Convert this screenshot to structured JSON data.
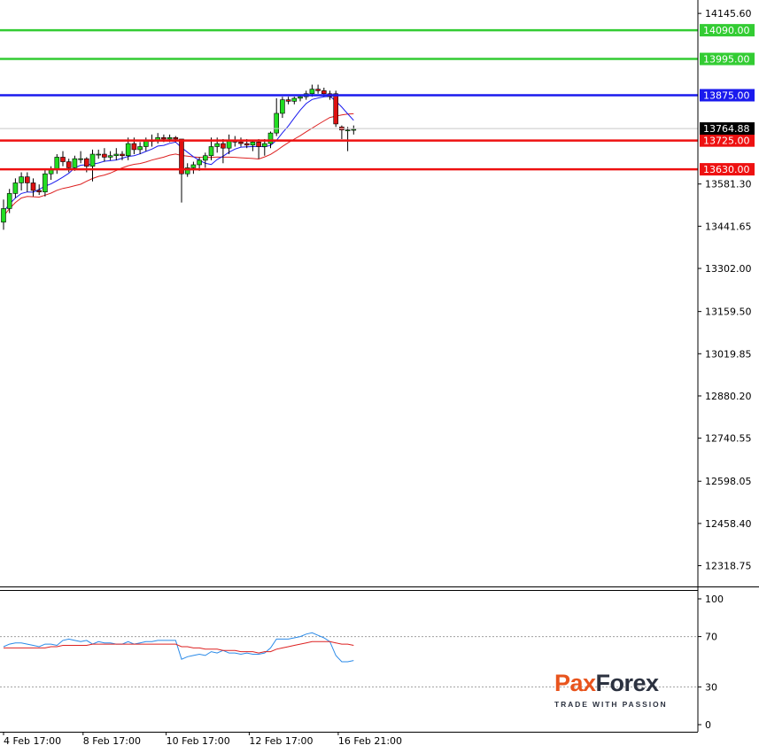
{
  "chart_data": [
    {
      "type": "candlestick",
      "ylim": [
        12250,
        14190
      ],
      "y_ticks": [
        "14145.60",
        "13581.30",
        "13441.65",
        "13302.00",
        "13159.50",
        "13019.85",
        "12880.20",
        "12740.55",
        "12598.05",
        "12458.40",
        "12318.75"
      ],
      "x_ticks": [
        "4 Feb 17:00",
        "8 Feb 17:00",
        "10 Feb 17:00",
        "12 Feb 17:00",
        "16 Feb 21:00"
      ],
      "current_price": "13764.88",
      "levels": [
        {
          "value": 14090.0,
          "label": "14090.00",
          "color": "#33cc33"
        },
        {
          "value": 13995.0,
          "label": "13995.00",
          "color": "#33cc33"
        },
        {
          "value": 13875.0,
          "label": "13875.00",
          "color": "#1a1aee"
        },
        {
          "value": 13725.0,
          "label": "13725.00",
          "color": "#ee1111"
        },
        {
          "value": 13630.0,
          "label": "13630.00",
          "color": "#ee1111"
        }
      ],
      "candles": [
        [
          13455,
          13530,
          13430,
          13500
        ],
        [
          13500,
          13565,
          13485,
          13550
        ],
        [
          13550,
          13600,
          13535,
          13585
        ],
        [
          13585,
          13620,
          13560,
          13605
        ],
        [
          13605,
          13620,
          13555,
          13585
        ],
        [
          13585,
          13600,
          13540,
          13560
        ],
        [
          13560,
          13580,
          13545,
          13555
        ],
        [
          13555,
          13630,
          13540,
          13615
        ],
        [
          13615,
          13640,
          13595,
          13630
        ],
        [
          13630,
          13680,
          13615,
          13670
        ],
        [
          13670,
          13690,
          13640,
          13655
        ],
        [
          13655,
          13665,
          13620,
          13635
        ],
        [
          13635,
          13675,
          13625,
          13665
        ],
        [
          13665,
          13690,
          13650,
          13665
        ],
        [
          13665,
          13670,
          13620,
          13640
        ],
        [
          13640,
          13695,
          13590,
          13680
        ],
        [
          13680,
          13695,
          13665,
          13680
        ],
        [
          13680,
          13700,
          13655,
          13670
        ],
        [
          13670,
          13690,
          13660,
          13675
        ],
        [
          13675,
          13700,
          13660,
          13680
        ],
        [
          13680,
          13690,
          13660,
          13675
        ],
        [
          13675,
          13735,
          13660,
          13715
        ],
        [
          13715,
          13735,
          13680,
          13695
        ],
        [
          13695,
          13720,
          13680,
          13705
        ],
        [
          13705,
          13735,
          13690,
          13725
        ],
        [
          13725,
          13745,
          13705,
          13725
        ],
        [
          13725,
          13750,
          13715,
          13735
        ],
        [
          13735,
          13745,
          13720,
          13730
        ],
        [
          13730,
          13745,
          13720,
          13735
        ],
        [
          13735,
          13740,
          13720,
          13730
        ],
        [
          13730,
          13730,
          13520,
          13615
        ],
        [
          13615,
          13650,
          13605,
          13635
        ],
        [
          13635,
          13655,
          13615,
          13645
        ],
        [
          13645,
          13670,
          13625,
          13660
        ],
        [
          13660,
          13685,
          13635,
          13675
        ],
        [
          13675,
          13735,
          13660,
          13705
        ],
        [
          13705,
          13735,
          13685,
          13715
        ],
        [
          13715,
          13730,
          13650,
          13700
        ],
        [
          13700,
          13745,
          13680,
          13725
        ],
        [
          13725,
          13740,
          13705,
          13720
        ],
        [
          13720,
          13735,
          13705,
          13715
        ],
        [
          13715,
          13730,
          13700,
          13710
        ],
        [
          13710,
          13725,
          13690,
          13720
        ],
        [
          13720,
          13730,
          13665,
          13705
        ],
        [
          13705,
          13730,
          13675,
          13715
        ],
        [
          13715,
          13755,
          13700,
          13750
        ],
        [
          13750,
          13865,
          13740,
          13815
        ],
        [
          13815,
          13870,
          13800,
          13860
        ],
        [
          13860,
          13870,
          13845,
          13855
        ],
        [
          13855,
          13870,
          13845,
          13865
        ],
        [
          13865,
          13875,
          13855,
          13870
        ],
        [
          13870,
          13890,
          13860,
          13880
        ],
        [
          13880,
          13910,
          13870,
          13895
        ],
        [
          13895,
          13910,
          13880,
          13890
        ],
        [
          13890,
          13900,
          13870,
          13880
        ],
        [
          13880,
          13890,
          13860,
          13870
        ],
        [
          13880,
          13890,
          13770,
          13780
        ],
        [
          13770,
          13775,
          13730,
          13760
        ],
        [
          13760,
          13770,
          13690,
          13760
        ],
        [
          13760,
          13775,
          13745,
          13762
        ]
      ]
    },
    {
      "type": "line",
      "ylim": [
        0,
        100
      ],
      "y_ticks": [
        "100",
        "70",
        "30",
        "0"
      ],
      "levels": [
        70,
        30
      ],
      "series": [
        {
          "color": "#2a8ae8",
          "values": [
            62,
            64,
            65,
            65,
            64,
            63,
            62,
            64,
            64,
            63,
            67,
            68,
            67,
            66,
            67,
            64,
            66,
            65,
            65,
            64,
            64,
            66,
            64,
            65,
            66,
            66,
            67,
            67,
            67,
            67,
            52,
            54,
            55,
            56,
            55,
            58,
            57,
            59,
            57,
            57,
            56,
            57,
            56,
            56,
            57,
            61,
            68,
            68,
            68,
            69,
            70,
            72,
            73,
            71,
            69,
            66,
            55,
            50,
            50,
            51
          ]
        },
        {
          "color": "#dd2222",
          "values": [
            61,
            61,
            61,
            61,
            61,
            61,
            61,
            61,
            62,
            62,
            63,
            63,
            63,
            63,
            63,
            64,
            64,
            64,
            64,
            64,
            64,
            64,
            64,
            64,
            64,
            64,
            64,
            64,
            64,
            64,
            62,
            62,
            61,
            61,
            60,
            60,
            60,
            59,
            59,
            59,
            58,
            58,
            58,
            57,
            58,
            58,
            60,
            61,
            62,
            63,
            64,
            65,
            66,
            66,
            66,
            66,
            65,
            64,
            64,
            63
          ]
        }
      ]
    }
  ],
  "logo": {
    "word_part1": "Pax",
    "word_part2": "Forex",
    "tagline": "TRADE WITH PASSION"
  }
}
